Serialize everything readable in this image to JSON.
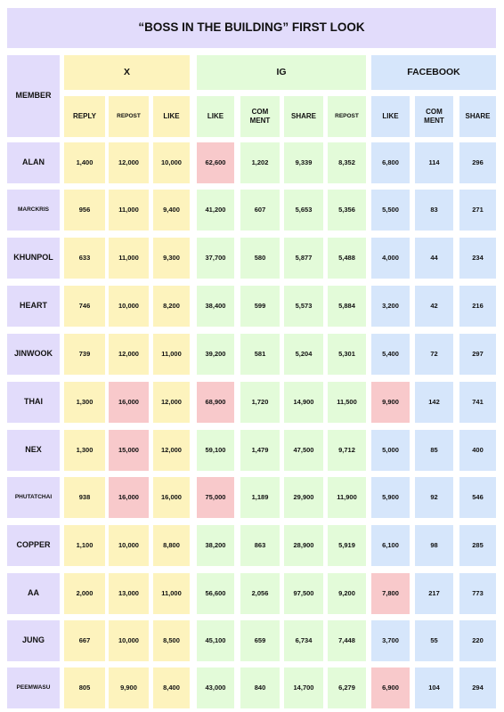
{
  "title": "“BOSS IN THE BUILDING” FIRST LOOK",
  "member_header": "MEMBER",
  "colors": {
    "purple": "#e2dcfb",
    "yellow": "#fdf3bd",
    "green": "#e3fbd9",
    "blue": "#d6e6fb",
    "highlight": "#f8c9cb"
  },
  "groups": [
    {
      "label": "X",
      "color": "yellow"
    },
    {
      "label": "IG",
      "color": "green"
    },
    {
      "label": "FACEBOOK",
      "color": "blue"
    }
  ],
  "columns": [
    {
      "label": "REPLY",
      "small": false,
      "group": 0
    },
    {
      "label": "REPOST",
      "small": true,
      "group": 0
    },
    {
      "label": "LIKE",
      "small": false,
      "group": 0
    },
    {
      "label": "LIKE",
      "small": false,
      "group": 1
    },
    {
      "label": "COM\nMENT",
      "small": false,
      "group": 1
    },
    {
      "label": "SHARE",
      "small": false,
      "group": 1
    },
    {
      "label": "REPOST",
      "small": true,
      "group": 1
    },
    {
      "label": "LIKE",
      "small": false,
      "group": 2
    },
    {
      "label": "COM\nMENT",
      "small": false,
      "group": 2
    },
    {
      "label": "SHARE",
      "small": false,
      "group": 2
    }
  ],
  "rows": [
    {
      "member": "ALAN",
      "small": false,
      "values": [
        "1,400",
        "12,000",
        "10,000",
        "62,600",
        "1,202",
        "9,339",
        "8,352",
        "6,800",
        "114",
        "296"
      ],
      "highlight": [
        3
      ]
    },
    {
      "member": "MARCKRIS",
      "small": true,
      "values": [
        "956",
        "11,000",
        "9,400",
        "41,200",
        "607",
        "5,653",
        "5,356",
        "5,500",
        "83",
        "271"
      ],
      "highlight": []
    },
    {
      "member": "KHUNPOL",
      "small": false,
      "values": [
        "633",
        "11,000",
        "9,300",
        "37,700",
        "580",
        "5,877",
        "5,488",
        "4,000",
        "44",
        "234"
      ],
      "highlight": []
    },
    {
      "member": "HEART",
      "small": false,
      "values": [
        "746",
        "10,000",
        "8,200",
        "38,400",
        "599",
        "5,573",
        "5,884",
        "3,200",
        "42",
        "216"
      ],
      "highlight": []
    },
    {
      "member": "JINWOOK",
      "small": false,
      "values": [
        "739",
        "12,000",
        "11,000",
        "39,200",
        "581",
        "5,204",
        "5,301",
        "5,400",
        "72",
        "297"
      ],
      "highlight": []
    },
    {
      "member": "THAI",
      "small": false,
      "values": [
        "1,300",
        "16,000",
        "12,000",
        "68,900",
        "1,720",
        "14,900",
        "11,500",
        "9,900",
        "142",
        "741"
      ],
      "highlight": [
        1,
        3,
        7
      ]
    },
    {
      "member": "NEX",
      "small": false,
      "values": [
        "1,300",
        "15,000",
        "12,000",
        "59,100",
        "1,479",
        "47,500",
        "9,712",
        "5,000",
        "85",
        "400"
      ],
      "highlight": [
        1
      ]
    },
    {
      "member": "PHUTATCHAI",
      "small": true,
      "values": [
        "938",
        "16,000",
        "16,000",
        "75,000",
        "1,189",
        "29,900",
        "11,900",
        "5,900",
        "92",
        "546"
      ],
      "highlight": [
        1,
        3
      ]
    },
    {
      "member": "COPPER",
      "small": false,
      "values": [
        "1,100",
        "10,000",
        "8,800",
        "38,200",
        "863",
        "28,900",
        "5,919",
        "6,100",
        "98",
        "285"
      ],
      "highlight": []
    },
    {
      "member": "AA",
      "small": false,
      "values": [
        "2,000",
        "13,000",
        "11,000",
        "56,600",
        "2,056",
        "97,500",
        "9,200",
        "7,800",
        "217",
        "773"
      ],
      "highlight": [
        7
      ]
    },
    {
      "member": "JUNG",
      "small": false,
      "values": [
        "667",
        "10,000",
        "8,500",
        "45,100",
        "659",
        "6,734",
        "7,448",
        "3,700",
        "55",
        "220"
      ],
      "highlight": []
    },
    {
      "member": "PEEMWASU",
      "small": true,
      "values": [
        "805",
        "9,900",
        "8,400",
        "43,000",
        "840",
        "14,700",
        "6,279",
        "6,900",
        "104",
        "294"
      ],
      "highlight": [
        7
      ]
    }
  ]
}
